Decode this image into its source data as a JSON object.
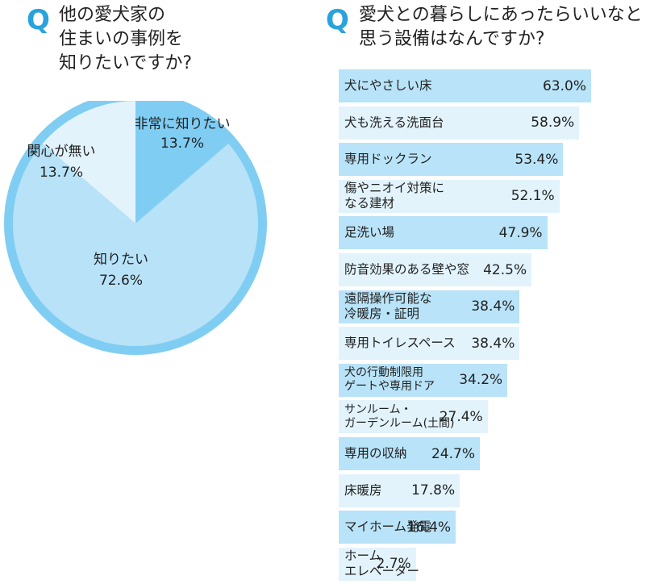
{
  "left_question": {
    "mark": "Q",
    "lines": [
      "他の愛犬家の",
      "住まいの事例を",
      "知りたいですか?"
    ]
  },
  "right_question": {
    "mark": "Q",
    "lines": [
      "愛犬との暮らしにあったらいいなと",
      "思う設備はなんですか?"
    ]
  },
  "colors": {
    "accent": "#29a3dd",
    "pie_outer_ring": "#7fcdf3",
    "pie_dark": "#7fcdf3",
    "pie_light": "#e3f3fc",
    "pie_mid": "#b7e2f8",
    "bar_dark": "#b9e3f8",
    "bar_light": "#e2f3fc"
  },
  "chart_data": [
    {
      "type": "pie",
      "slices": [
        {
          "label": "非常に知りたい",
          "value": 13.7,
          "value_text": "13.7%"
        },
        {
          "label": "知りたい",
          "value": 72.6,
          "value_text": "72.6%"
        },
        {
          "label": "関心が無い",
          "value": 13.7,
          "value_text": "13.7%"
        }
      ]
    },
    {
      "type": "bar",
      "orientation": "horizontal",
      "xlim": [
        0,
        63.0
      ],
      "bars": [
        {
          "label_lines": [
            "犬にやさしい床"
          ],
          "value": 63.0,
          "value_text": "63.0%"
        },
        {
          "label_lines": [
            "犬も洗える洗面台"
          ],
          "value": 58.9,
          "value_text": "58.9%"
        },
        {
          "label_lines": [
            "専用ドックラン"
          ],
          "value": 53.4,
          "value_text": "53.4%"
        },
        {
          "label_lines": [
            "傷やニオイ対策に",
            "なる建材"
          ],
          "value": 52.1,
          "value_text": "52.1%"
        },
        {
          "label_lines": [
            "足洗い場"
          ],
          "value": 47.9,
          "value_text": "47.9%"
        },
        {
          "label_lines": [
            "防音効果のある壁や窓"
          ],
          "value": 42.5,
          "value_text": "42.5%"
        },
        {
          "label_lines": [
            "遠隔操作可能な",
            "冷暖房・証明"
          ],
          "value": 38.4,
          "value_text": "38.4%"
        },
        {
          "label_lines": [
            "専用トイレスペース"
          ],
          "value": 38.4,
          "value_text": "38.4%"
        },
        {
          "label_lines": [
            "犬の行動制限用",
            "ゲートや専用ドア"
          ],
          "value": 34.2,
          "value_text": "34.2%"
        },
        {
          "label_lines": [
            "サンルーム・",
            "ガーデンルーム(土間)"
          ],
          "value": 27.4,
          "value_text": "27.4%"
        },
        {
          "label_lines": [
            "専用の収納"
          ],
          "value": 24.7,
          "value_text": "24.7%"
        },
        {
          "label_lines": [
            "床暖房"
          ],
          "value": 17.8,
          "value_text": "17.8%"
        },
        {
          "label_lines": [
            "マイホーム発電"
          ],
          "value": 16.4,
          "value_text": "16.4%"
        },
        {
          "label_lines": [
            "ホーム",
            "エレベーター"
          ],
          "value": 2.7,
          "value_text": "2.7%"
        }
      ]
    }
  ]
}
